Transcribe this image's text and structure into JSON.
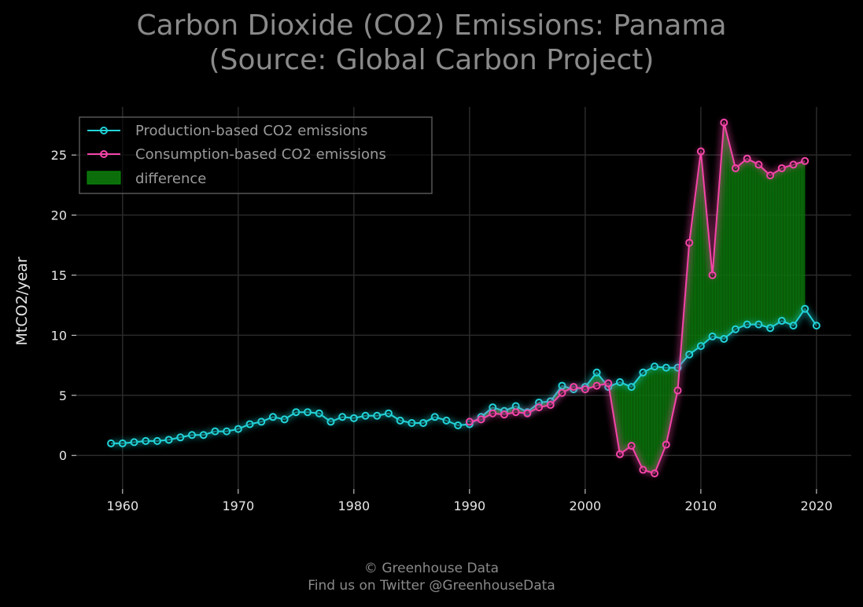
{
  "chart_data": {
    "type": "line",
    "title_line1": "Carbon Dioxide (CO2) Emissions: Panama",
    "title_line2": "(Source: Global Carbon Project)",
    "xlabel": "",
    "ylabel": "MtCO2/year",
    "xlim": [
      1956,
      2023
    ],
    "ylim": [
      -2.8,
      29
    ],
    "xticks": [
      1960,
      1970,
      1980,
      1990,
      2000,
      2010,
      2020
    ],
    "yticks": [
      0,
      5,
      10,
      15,
      20,
      25
    ],
    "grid": true,
    "legend_position": "top-left",
    "fill_label": "difference",
    "colors": {
      "production": "#22d3d8",
      "consumption": "#f545a8",
      "difference": "#0b6e0b",
      "background": "#000000",
      "grid": "#2a2a2a"
    },
    "series": [
      {
        "name": "Production-based CO2 emissions",
        "x": [
          1959,
          1960,
          1961,
          1962,
          1963,
          1964,
          1965,
          1966,
          1967,
          1968,
          1969,
          1970,
          1971,
          1972,
          1973,
          1974,
          1975,
          1976,
          1977,
          1978,
          1979,
          1980,
          1981,
          1982,
          1983,
          1984,
          1985,
          1986,
          1987,
          1988,
          1989,
          1990,
          1991,
          1992,
          1993,
          1994,
          1995,
          1996,
          1997,
          1998,
          1999,
          2000,
          2001,
          2002,
          2003,
          2004,
          2005,
          2006,
          2007,
          2008,
          2009,
          2010,
          2011,
          2012,
          2013,
          2014,
          2015,
          2016,
          2017,
          2018,
          2019,
          2020
        ],
        "values": [
          1.0,
          1.0,
          1.1,
          1.2,
          1.2,
          1.3,
          1.5,
          1.7,
          1.7,
          2.0,
          2.0,
          2.2,
          2.6,
          2.8,
          3.2,
          3.0,
          3.6,
          3.6,
          3.5,
          2.8,
          3.2,
          3.1,
          3.3,
          3.3,
          3.5,
          2.9,
          2.7,
          2.7,
          3.2,
          2.9,
          2.5,
          2.6,
          3.2,
          4.0,
          3.7,
          4.1,
          3.6,
          4.4,
          4.5,
          5.8,
          5.5,
          5.7,
          6.9,
          5.7,
          6.1,
          5.7,
          6.9,
          7.4,
          7.3,
          7.3,
          8.4,
          9.1,
          9.9,
          9.7,
          10.5,
          10.9,
          10.9,
          10.6,
          11.2,
          10.8,
          12.2,
          10.8
        ]
      },
      {
        "name": "Consumption-based CO2 emissions",
        "x": [
          1990,
          1991,
          1992,
          1993,
          1994,
          1995,
          1996,
          1997,
          1998,
          1999,
          2000,
          2001,
          2002,
          2003,
          2004,
          2005,
          2006,
          2007,
          2008,
          2009,
          2010,
          2011,
          2012,
          2013,
          2014,
          2015,
          2016,
          2017,
          2018,
          2019
        ],
        "values": [
          2.8,
          3.0,
          3.5,
          3.4,
          3.6,
          3.5,
          4.0,
          4.2,
          5.2,
          5.7,
          5.5,
          5.8,
          6.0,
          0.1,
          0.8,
          -1.2,
          -1.5,
          0.9,
          5.4,
          17.7,
          25.3,
          15.0,
          27.7,
          23.9,
          24.7,
          24.2,
          23.3,
          23.9,
          24.2,
          24.5
        ]
      }
    ]
  },
  "footer": {
    "line1": "© Greenhouse Data",
    "line2": "Find us on Twitter @GreenhouseData"
  }
}
